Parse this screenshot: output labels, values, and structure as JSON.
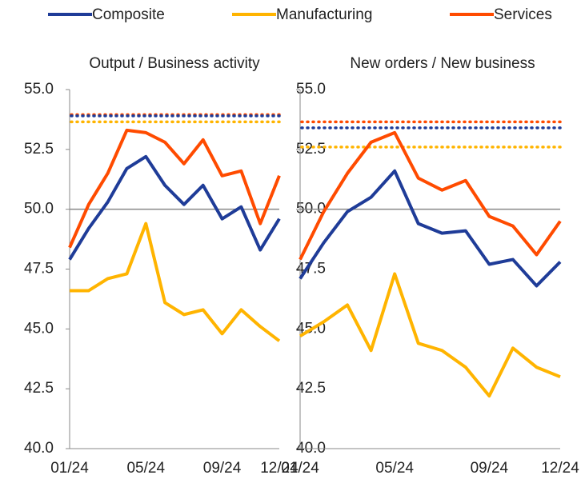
{
  "chart_data": [
    {
      "type": "line",
      "title": "Output / Business activity",
      "categories": [
        "01/24",
        null,
        null,
        null,
        "05/24",
        null,
        null,
        null,
        "09/24",
        null,
        null,
        "12/24"
      ],
      "series": [
        {
          "name": "Composite",
          "color": "#1f3c98",
          "values": [
            47.9,
            49.2,
            50.3,
            51.7,
            52.2,
            51.0,
            50.2,
            51.0,
            49.6,
            50.1,
            48.3,
            49.6
          ]
        },
        {
          "name": "Manufacturing",
          "color": "#ffb400",
          "values": [
            46.6,
            46.6,
            47.1,
            47.3,
            49.4,
            46.1,
            45.6,
            45.8,
            44.8,
            45.8,
            45.1,
            44.5
          ]
        },
        {
          "name": "Services",
          "color": "#ff4b00",
          "values": [
            48.4,
            50.2,
            51.5,
            53.3,
            53.2,
            52.8,
            51.9,
            52.9,
            51.4,
            51.6,
            49.4,
            51.4
          ]
        }
      ],
      "reference_lines": [
        {
          "color": "#ff4b00",
          "value": 53.95
        },
        {
          "color": "#1f3c98",
          "value": 53.9
        },
        {
          "color": "#ffb400",
          "value": 53.65
        }
      ],
      "ylim": [
        40,
        55
      ],
      "yticks": [
        {
          "value": 40,
          "label": "40.0"
        },
        {
          "value": 42.5,
          "label": "42.5"
        },
        {
          "value": 45,
          "label": "45.0"
        },
        {
          "value": 47.5,
          "label": "47.5"
        },
        {
          "value": 50,
          "label": "50.0"
        },
        {
          "value": 52.5,
          "label": "52.5"
        },
        {
          "value": 55,
          "label": "55.0"
        }
      ],
      "baseline": 50
    },
    {
      "type": "line",
      "title": "New orders / New business",
      "categories": [
        "01/24",
        null,
        null,
        null,
        "05/24",
        null,
        null,
        null,
        "09/24",
        null,
        null,
        "12/24"
      ],
      "series": [
        {
          "color": "#1f3c98",
          "values": [
            47.1,
            48.6,
            49.9,
            50.5,
            51.6,
            49.4,
            49.0,
            49.1,
            47.7,
            47.9,
            46.8,
            47.8
          ]
        },
        {
          "color": "#ffb400",
          "values": [
            44.7,
            45.3,
            46.0,
            44.1,
            47.3,
            44.4,
            44.1,
            43.4,
            42.2,
            44.2,
            43.4,
            43.0
          ]
        },
        {
          "color": "#ff4b00",
          "values": [
            47.9,
            49.9,
            51.5,
            52.8,
            53.2,
            51.3,
            50.8,
            51.2,
            49.7,
            49.3,
            48.1,
            49.5
          ]
        }
      ],
      "reference_lines": [
        {
          "color": "#ff4b00",
          "value": 53.65
        },
        {
          "color": "#1f3c98",
          "value": 53.4
        },
        {
          "color": "#ffb400",
          "value": 52.6
        }
      ],
      "ylim": [
        40,
        55
      ],
      "yticks": [
        {
          "value": 40,
          "label": "40.0"
        },
        {
          "value": 42.5,
          "label": "42.5"
        },
        {
          "value": 45,
          "label": "45.0"
        },
        {
          "value": 47.5,
          "label": "47.5"
        },
        {
          "value": 50,
          "label": "50.0"
        },
        {
          "value": 52.5,
          "label": "52.5"
        },
        {
          "value": 55,
          "label": "55.0"
        }
      ],
      "baseline": 50
    }
  ]
}
